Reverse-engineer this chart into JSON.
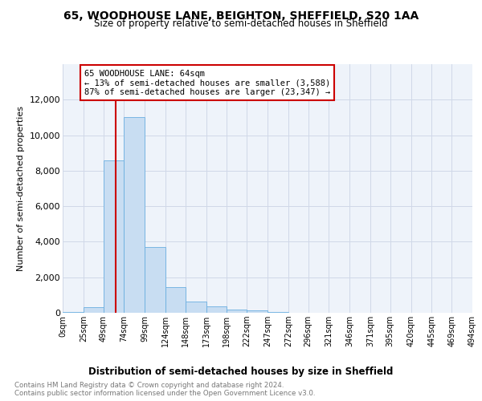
{
  "title": "65, WOODHOUSE LANE, BEIGHTON, SHEFFIELD, S20 1AA",
  "subtitle": "Size of property relative to semi-detached houses in Sheffield",
  "xlabel": "Distribution of semi-detached houses by size in Sheffield",
  "ylabel": "Number of semi-detached properties",
  "annotation_title": "65 WOODHOUSE LANE: 64sqm",
  "annotation_line1": "← 13% of semi-detached houses are smaller (3,588)",
  "annotation_line2": "87% of semi-detached houses are larger (23,347) →",
  "footnote1": "Contains HM Land Registry data © Crown copyright and database right 2024.",
  "footnote2": "Contains public sector information licensed under the Open Government Licence v3.0.",
  "property_size": 64,
  "bar_edges": [
    0,
    25,
    49,
    74,
    99,
    124,
    148,
    173,
    198,
    222,
    247,
    272,
    296,
    321,
    346,
    371,
    395,
    420,
    445,
    469,
    494
  ],
  "bar_heights": [
    50,
    300,
    8600,
    11000,
    3700,
    1450,
    620,
    380,
    200,
    120,
    60,
    20,
    5,
    2,
    1,
    1,
    0,
    0,
    0,
    0
  ],
  "tick_labels": [
    "0sqm",
    "25sqm",
    "49sqm",
    "74sqm",
    "99sqm",
    "124sqm",
    "148sqm",
    "173sqm",
    "198sqm",
    "222sqm",
    "247sqm",
    "272sqm",
    "296sqm",
    "321sqm",
    "346sqm",
    "371sqm",
    "395sqm",
    "420sqm",
    "445sqm",
    "469sqm",
    "494sqm"
  ],
  "bar_color": "#c8ddf2",
  "bar_edge_color": "#6aaee0",
  "red_line_color": "#cc0000",
  "annotation_box_color": "#cc0000",
  "grid_color": "#d0d8e8",
  "background_color": "#ffffff",
  "plot_bg_color": "#eef3fa",
  "ylim": [
    0,
    14000
  ],
  "yticks": [
    0,
    2000,
    4000,
    6000,
    8000,
    10000,
    12000
  ]
}
